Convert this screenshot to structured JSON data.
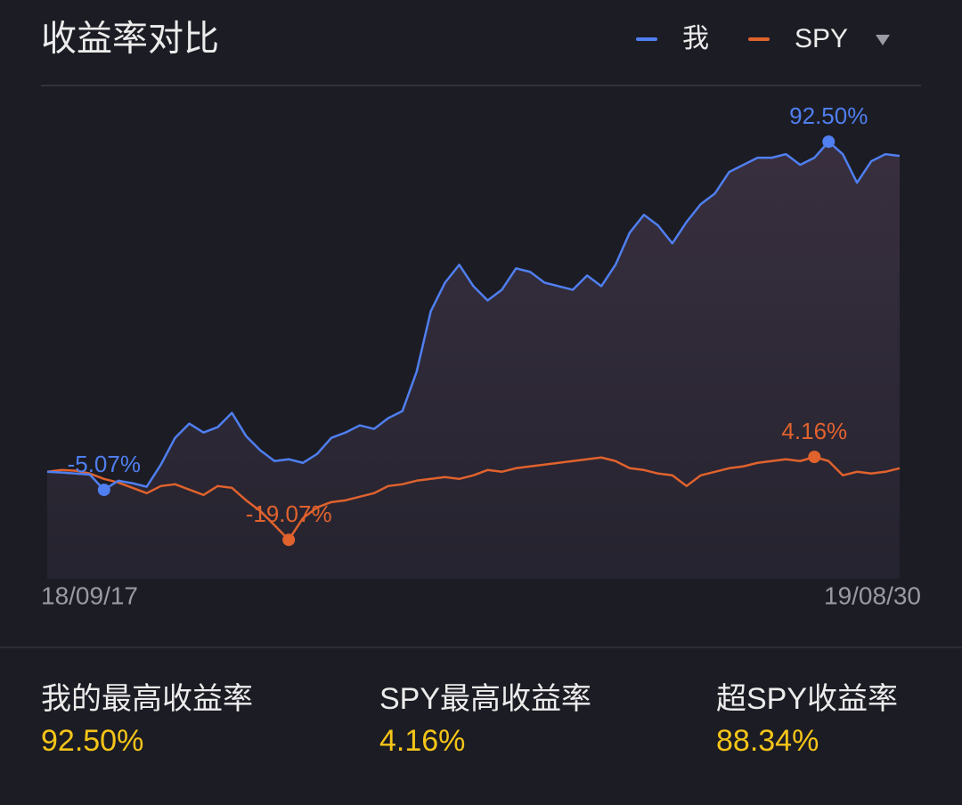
{
  "chart_data": {
    "type": "line",
    "title": "收益率对比",
    "categories": [
      "18/09/17",
      null,
      null,
      null,
      null,
      null,
      null,
      null,
      null,
      null,
      null,
      null,
      null,
      null,
      null,
      null,
      null,
      null,
      null,
      null,
      null,
      null,
      null,
      null,
      null,
      null,
      null,
      null,
      null,
      null,
      null,
      null,
      null,
      null,
      null,
      null,
      null,
      null,
      null,
      null,
      null,
      null,
      null,
      null,
      null,
      null,
      null,
      null,
      null,
      null,
      null,
      null,
      null,
      null,
      null,
      null,
      null,
      null,
      null,
      null,
      "19/08/30"
    ],
    "ylim": [
      -30,
      108
    ],
    "series": [
      {
        "name": "我",
        "color": "#4f7ff0",
        "values": [
          0,
          -0.2,
          -0.5,
          -0.8,
          -5.07,
          -2.5,
          -3.2,
          -4.2,
          2,
          9.5,
          13.5,
          11,
          12.5,
          16.5,
          10,
          6,
          3,
          3.5,
          2.5,
          5,
          9.5,
          11,
          13,
          12,
          15,
          17,
          28,
          45,
          53,
          58,
          52,
          48,
          51,
          57,
          56,
          53,
          52,
          51,
          55,
          52,
          58,
          67,
          72,
          69,
          64,
          70,
          75,
          78,
          84,
          86,
          88,
          88,
          89,
          86,
          88,
          92.5,
          89,
          81,
          87,
          89,
          88.5
        ],
        "value_labels": [
          null,
          null,
          null,
          null,
          "-5.07%",
          null,
          null,
          null,
          null,
          null,
          null,
          null,
          null,
          null,
          null,
          null,
          null,
          null,
          null,
          null,
          null,
          null,
          null,
          null,
          null,
          null,
          null,
          null,
          null,
          null,
          null,
          null,
          null,
          null,
          null,
          null,
          null,
          null,
          null,
          null,
          null,
          null,
          null,
          null,
          null,
          null,
          null,
          null,
          null,
          null,
          null,
          null,
          null,
          null,
          null,
          "92.50%",
          null,
          null,
          null,
          null,
          null
        ]
      },
      {
        "name": "SPY",
        "color": "#e0622d",
        "values": [
          0,
          0.5,
          0.3,
          -0.5,
          -2,
          -3,
          -4.5,
          -6,
          -4,
          -3.5,
          -5,
          -6.5,
          -4,
          -4.5,
          -8,
          -11,
          -15,
          -19.07,
          -13,
          -10,
          -8.5,
          -8,
          -7,
          -6,
          -4,
          -3.5,
          -2.5,
          -2,
          -1.5,
          -2,
          -1,
          0.5,
          0,
          1,
          1.5,
          2,
          2.5,
          3,
          3.5,
          4,
          3,
          1,
          0.5,
          -0.5,
          -1,
          -4,
          -1,
          0,
          1,
          1.5,
          2.5,
          3,
          3.5,
          3,
          4.16,
          3,
          -1,
          0,
          -0.5,
          0,
          1
        ],
        "value_labels": [
          null,
          null,
          null,
          null,
          null,
          null,
          null,
          null,
          null,
          null,
          null,
          null,
          null,
          null,
          null,
          null,
          null,
          "-19.07%",
          null,
          null,
          null,
          null,
          null,
          null,
          null,
          null,
          null,
          null,
          null,
          null,
          null,
          null,
          null,
          null,
          null,
          null,
          null,
          null,
          null,
          null,
          null,
          null,
          null,
          null,
          null,
          null,
          null,
          null,
          null,
          null,
          null,
          null,
          null,
          null,
          "4.16%",
          null,
          null,
          null,
          null,
          null,
          null
        ]
      }
    ]
  },
  "summary": [
    {
      "label": "我的最高收益率",
      "value": "92.50%"
    },
    {
      "label": "SPY最高收益率",
      "value": "4.16%"
    },
    {
      "label": "超SPY收益率",
      "value": "88.34%"
    }
  ]
}
